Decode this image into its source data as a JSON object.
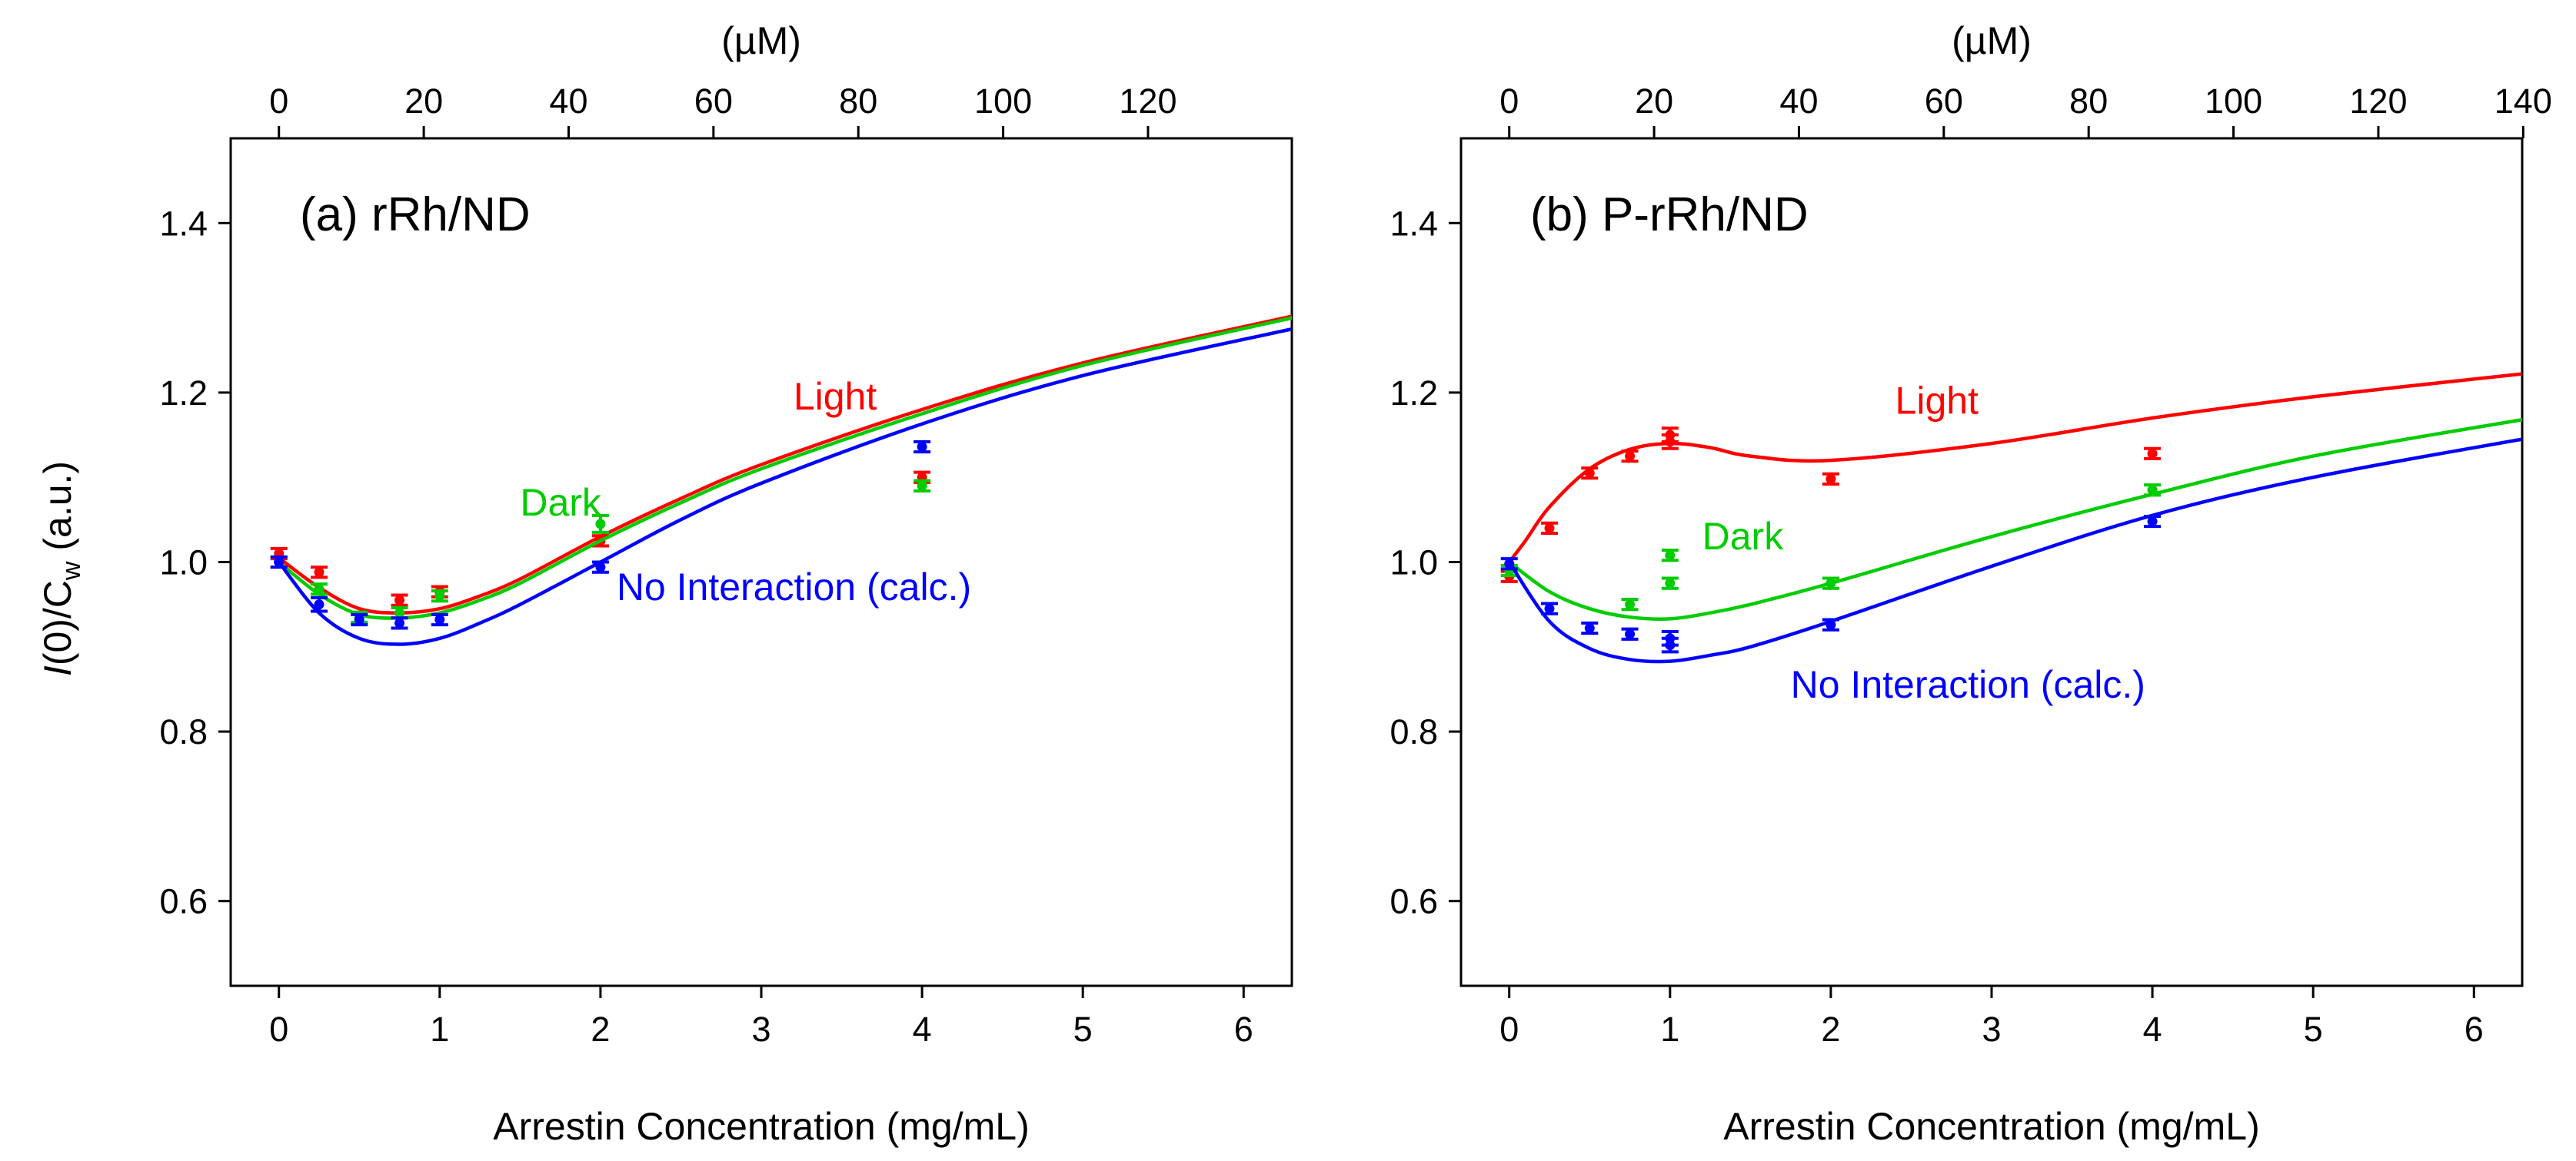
{
  "chart_data": [
    {
      "type": "line",
      "title": "(a) rRh/ND",
      "xlabel": "Arrestin Concentration (mg/mL)",
      "ylabel": "I(0)/C_w (a.u.)",
      "ylabel_parts": {
        "italic": "I",
        "main": "(0)/C",
        "sub": "w",
        "tail": " (a.u.)"
      },
      "x2label": "(µM)",
      "xlim": [
        -0.3,
        6.3
      ],
      "ylim": [
        0.5,
        1.5
      ],
      "x2_factor": 22.2,
      "xticks": [
        0,
        1,
        2,
        3,
        4,
        5,
        6
      ],
      "yticks": [
        0.6,
        0.8,
        1.0,
        1.2,
        1.4
      ],
      "ytick_labels": [
        "0.6",
        "0.8",
        "1.0",
        "1.2",
        "1.4"
      ],
      "x2ticks": [
        0,
        20,
        40,
        60,
        80,
        100,
        120
      ],
      "series": [
        {
          "name": "Light",
          "color": "#ff0000",
          "label": "Light",
          "label_at": [
            3.2,
            1.18
          ],
          "curve": {
            "x": [
              0,
              0.25,
              0.5,
              0.75,
              1.0,
              1.25,
              1.5,
              2.0,
              2.5,
              3.0,
              4.0,
              5.0,
              6.3
            ],
            "y": [
              1.005,
              0.97,
              0.945,
              0.94,
              0.945,
              0.96,
              0.98,
              1.03,
              1.075,
              1.115,
              1.18,
              1.235,
              1.29
            ]
          },
          "points": {
            "x": [
              0,
              0.25,
              0.75,
              1.0,
              2.0,
              4.0
            ],
            "y": [
              1.01,
              0.988,
              0.955,
              0.965,
              1.025,
              1.1
            ],
            "err": [
              0.006,
              0.006,
              0.006,
              0.006,
              0.006,
              0.006
            ]
          }
        },
        {
          "name": "Dark",
          "color": "#00cc00",
          "label": "Dark",
          "label_at": [
            1.5,
            1.055
          ],
          "curve": {
            "x": [
              0,
              0.25,
              0.5,
              0.75,
              1.0,
              1.25,
              1.5,
              2.0,
              2.5,
              3.0,
              4.0,
              5.0,
              6.3
            ],
            "y": [
              1.0,
              0.962,
              0.938,
              0.934,
              0.94,
              0.955,
              0.975,
              1.025,
              1.07,
              1.11,
              1.175,
              1.232,
              1.288
            ]
          },
          "points": {
            "x": [
              0,
              0.25,
              0.5,
              0.75,
              1.0,
              2.0,
              4.0
            ],
            "y": [
              1.0,
              0.968,
              0.935,
              0.94,
              0.96,
              1.045,
              1.09
            ],
            "err": [
              0.006,
              0.006,
              0.006,
              0.006,
              0.006,
              0.01,
              0.006
            ]
          }
        },
        {
          "name": "No Interaction (calc.)",
          "color": "#0000ff",
          "label": "No Interaction (calc.)",
          "label_at": [
            2.1,
            0.955
          ],
          "curve": {
            "x": [
              0,
              0.25,
              0.5,
              0.75,
              1.0,
              1.25,
              1.5,
              2.0,
              2.5,
              3.0,
              4.0,
              5.0,
              6.3
            ],
            "y": [
              1.0,
              0.94,
              0.91,
              0.903,
              0.91,
              0.928,
              0.95,
              1.0,
              1.05,
              1.093,
              1.163,
              1.22,
              1.275
            ]
          },
          "points": {
            "x": [
              0,
              0.25,
              0.5,
              0.75,
              1.0,
              2.0,
              4.0
            ],
            "y": [
              1.0,
              0.95,
              0.932,
              0.928,
              0.932,
              0.994,
              1.136
            ],
            "err": [
              0.006,
              0.008,
              0.006,
              0.006,
              0.006,
              0.006,
              0.006
            ]
          }
        }
      ]
    },
    {
      "type": "line",
      "title": "(b) P-rRh/ND",
      "xlabel": "Arrestin Concentration (mg/mL)",
      "x2label": "(µM)",
      "xlim": [
        -0.3,
        6.3
      ],
      "ylim": [
        0.5,
        1.5
      ],
      "x2_factor": 22.2,
      "xticks": [
        0,
        1,
        2,
        3,
        4,
        5,
        6
      ],
      "yticks": [
        0.6,
        0.8,
        1.0,
        1.2,
        1.4
      ],
      "ytick_labels": [
        "0.6",
        "0.8",
        "1.0",
        "1.2",
        "1.4"
      ],
      "x2ticks": [
        0,
        20,
        40,
        60,
        80,
        100,
        120,
        140
      ],
      "series": [
        {
          "name": "Light",
          "color": "#ff0000",
          "label": "Light",
          "label_at": [
            2.4,
            1.175
          ],
          "curve": {
            "x": [
              0,
              0.1,
              0.25,
              0.5,
              0.75,
              1.0,
              1.25,
              1.5,
              2.0,
              3.0,
              4.0,
              5.0,
              6.3
            ],
            "y": [
              1.0,
              1.025,
              1.065,
              1.11,
              1.133,
              1.14,
              1.135,
              1.125,
              1.12,
              1.14,
              1.17,
              1.195,
              1.222
            ]
          },
          "points": {
            "x": [
              0,
              0.25,
              0.5,
              0.75,
              1.0,
              1.0,
              2.0,
              4.0
            ],
            "y": [
              0.983,
              1.04,
              1.105,
              1.125,
              1.142,
              1.15,
              1.098,
              1.128
            ],
            "err": [
              0.006,
              0.006,
              0.006,
              0.006,
              0.008,
              0.008,
              0.006,
              0.006
            ]
          }
        },
        {
          "name": "Dark",
          "color": "#00cc00",
          "label": "Dark",
          "label_at": [
            1.2,
            1.015
          ],
          "curve": {
            "x": [
              0,
              0.25,
              0.5,
              0.75,
              1.0,
              1.25,
              1.5,
              2.0,
              3.0,
              4.0,
              5.0,
              6.3
            ],
            "y": [
              1.0,
              0.965,
              0.945,
              0.935,
              0.933,
              0.94,
              0.95,
              0.975,
              1.03,
              1.08,
              1.125,
              1.168
            ]
          },
          "points": {
            "x": [
              0,
              0.75,
              1.0,
              1.0,
              2.0,
              4.0
            ],
            "y": [
              0.99,
              0.95,
              0.975,
              1.008,
              0.975,
              1.085
            ],
            "err": [
              0.006,
              0.006,
              0.006,
              0.006,
              0.006,
              0.006
            ]
          }
        },
        {
          "name": "No Interaction (calc.)",
          "color": "#0000ff",
          "label": "No Interaction (calc.)",
          "label_at": [
            1.75,
            0.84
          ],
          "curve": {
            "x": [
              0,
              0.25,
              0.5,
              0.75,
              1.0,
              1.25,
              1.5,
              2.0,
              3.0,
              4.0,
              5.0,
              6.3
            ],
            "y": [
              1.0,
              0.93,
              0.898,
              0.885,
              0.883,
              0.89,
              0.9,
              0.93,
              0.995,
              1.055,
              1.1,
              1.145
            ]
          },
          "points": {
            "x": [
              0,
              0.25,
              0.5,
              0.75,
              1.0,
              1.0,
              2.0,
              4.0
            ],
            "y": [
              0.998,
              0.945,
              0.922,
              0.915,
              0.91,
              0.902,
              0.926,
              1.048
            ],
            "err": [
              0.006,
              0.006,
              0.006,
              0.006,
              0.008,
              0.008,
              0.006,
              0.006
            ]
          }
        }
      ]
    }
  ]
}
